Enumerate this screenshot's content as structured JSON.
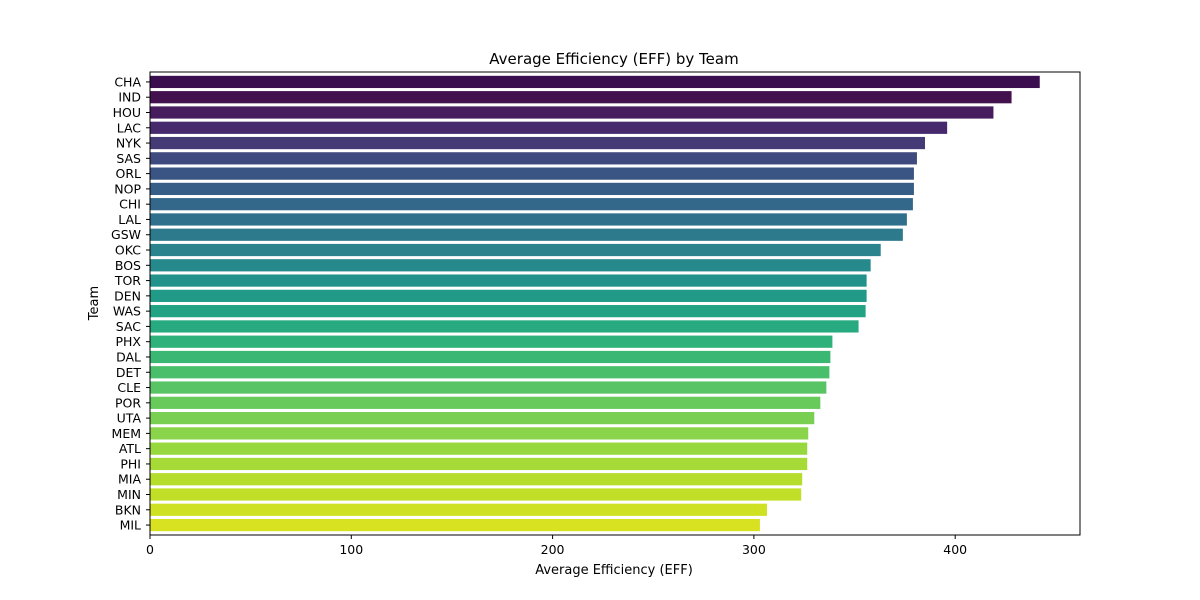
{
  "chart_data": {
    "type": "bar",
    "orientation": "horizontal",
    "title": "Average Efficiency (EFF) by Team",
    "xlabel": "Average Efficiency (EFF)",
    "ylabel": "Team",
    "xlim": [
      0,
      462
    ],
    "xticks": [
      0,
      100,
      200,
      300,
      400
    ],
    "grid": false,
    "colormap": "viridis",
    "categories": [
      "CHA",
      "IND",
      "HOU",
      "LAC",
      "NYK",
      "SAS",
      "ORL",
      "NOP",
      "CHI",
      "LAL",
      "GSW",
      "OKC",
      "BOS",
      "TOR",
      "DEN",
      "WAS",
      "SAC",
      "PHX",
      "DAL",
      "DET",
      "CLE",
      "POR",
      "UTA",
      "MEM",
      "ATL",
      "PHI",
      "MIA",
      "MIN",
      "BKN",
      "MIL"
    ],
    "values": [
      442,
      428,
      419,
      396,
      385,
      381,
      379.5,
      379.5,
      379,
      376,
      374,
      363,
      358,
      356,
      356,
      355.5,
      352,
      339,
      338,
      337.5,
      336,
      333,
      330,
      327,
      326.5,
      326.5,
      324,
      323.5,
      306.5,
      303
    ],
    "colors": [
      "#3b0f4f",
      "#44114f",
      "#471c5f",
      "#46286c",
      "#443a76",
      "#3f4a7f",
      "#3a5583",
      "#375e87",
      "#34688a",
      "#30708c",
      "#2d7a8c",
      "#2a838d",
      "#26898c",
      "#23928b",
      "#219b88",
      "#22a384",
      "#27aa7f",
      "#2eb17a",
      "#3ab873",
      "#49be6b",
      "#58c465",
      "#67ca5b",
      "#78cf52",
      "#89d44a",
      "#98d83f",
      "#a6da36",
      "#b5dd2e",
      "#c2df27",
      "#cfe123",
      "#d8e221"
    ]
  }
}
